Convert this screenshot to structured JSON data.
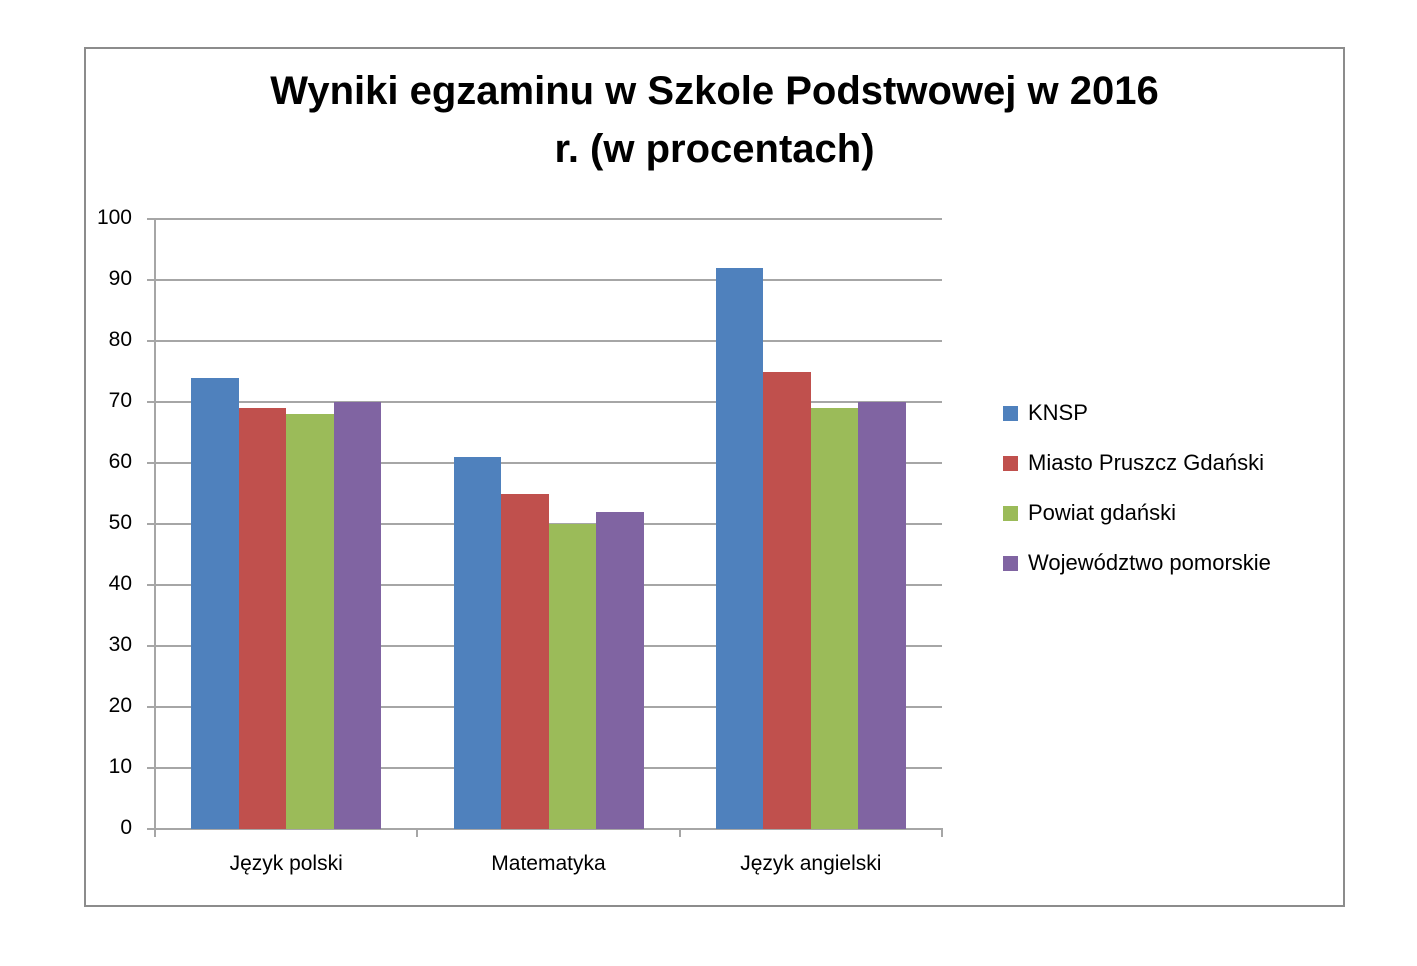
{
  "chart_data": {
    "type": "bar",
    "title": "Wyniki egzaminu w Szkole Podstwowej w 2016 r. (w procentach)",
    "title_lines": [
      "Wyniki egzaminu w Szkole Podstwowej w 2016",
      "r. (w procentach)"
    ],
    "xlabel": "",
    "ylabel": "",
    "ylim": [
      0,
      100
    ],
    "yticks": [
      0,
      10,
      20,
      30,
      40,
      50,
      60,
      70,
      80,
      90,
      100
    ],
    "grid": true,
    "legend_position": "right",
    "categories": [
      "Język polski",
      "Matematyka",
      "Język angielski"
    ],
    "series": [
      {
        "name": "KNSP",
        "color": "#4f81bd",
        "values": [
          74,
          61,
          92
        ]
      },
      {
        "name": "Miasto Pruszcz Gdański",
        "color": "#c0504d",
        "values": [
          69,
          55,
          75
        ]
      },
      {
        "name": "Powiat gdański",
        "color": "#9bbb59",
        "values": [
          68,
          50,
          69
        ]
      },
      {
        "name": "Województwo pomorskie",
        "color": "#8064a2",
        "values": [
          70,
          52,
          70
        ]
      }
    ]
  }
}
